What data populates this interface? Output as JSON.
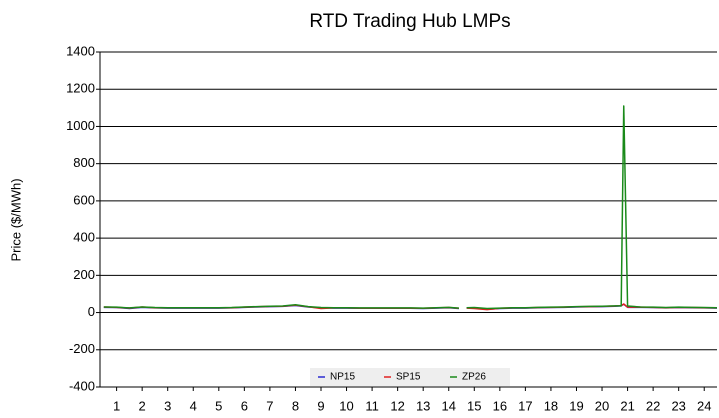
{
  "chart_data": {
    "type": "line",
    "title": "RTD Trading Hub LMPs",
    "y_label": "Price ($/MWh)",
    "x": [
      0.5,
      1,
      1.5,
      2,
      2.5,
      3,
      3.5,
      4,
      4.5,
      5,
      5.5,
      6,
      6.5,
      7,
      7.5,
      8,
      8.5,
      9,
      9.5,
      10,
      10.5,
      11,
      11.5,
      12,
      12.5,
      13,
      13.5,
      14,
      14.4,
      14.55,
      14.7,
      15,
      15.5,
      16,
      16.5,
      17,
      17.5,
      18,
      18.5,
      19,
      19.5,
      20,
      20.5,
      20.75,
      20.85,
      21,
      21.5,
      22,
      22.5,
      23,
      23.5,
      24,
      24.5
    ],
    "series": [
      {
        "name": "NP15",
        "color": "#2b2bd0",
        "values": [
          28,
          27,
          22,
          28,
          25,
          24,
          24,
          24,
          24,
          24,
          25,
          28,
          30,
          32,
          33,
          38,
          30,
          26,
          24,
          24,
          23,
          23,
          23,
          23,
          23,
          22,
          24,
          26,
          22,
          null,
          25,
          26,
          18,
          22,
          24,
          24,
          26,
          27,
          28,
          30,
          31,
          32,
          34,
          36,
          45,
          28,
          28,
          27,
          25,
          27,
          26,
          25,
          24
        ]
      },
      {
        "name": "SP15",
        "color": "#e02020",
        "values": [
          30,
          28,
          24,
          30,
          26,
          25,
          25,
          25,
          25,
          25,
          26,
          29,
          31,
          33,
          34,
          40,
          31,
          22,
          25,
          25,
          24,
          24,
          24,
          24,
          24,
          23,
          25,
          27,
          23,
          null,
          24,
          22,
          16,
          23,
          25,
          25,
          27,
          28,
          29,
          31,
          32,
          33,
          35,
          37,
          46,
          29,
          29,
          28,
          26,
          28,
          27,
          26,
          25
        ]
      },
      {
        "name": "ZP26",
        "color": "#1a8a1a",
        "values": [
          30,
          29,
          25,
          30,
          27,
          26,
          26,
          26,
          26,
          26,
          27,
          30,
          32,
          34,
          35,
          42,
          32,
          27,
          26,
          26,
          25,
          25,
          25,
          25,
          25,
          24,
          26,
          28,
          24,
          null,
          26,
          27,
          22,
          24,
          26,
          26,
          28,
          29,
          30,
          32,
          33,
          34,
          36,
          36,
          1110,
          35,
          30,
          29,
          27,
          29,
          28,
          27,
          26
        ]
      }
    ],
    "xlim": [
      0.35,
      24.5
    ],
    "xticks": [
      1,
      2,
      3,
      4,
      5,
      6,
      7,
      8,
      9,
      10,
      11,
      12,
      13,
      14,
      15,
      16,
      17,
      18,
      19,
      20,
      21,
      22,
      23,
      24
    ],
    "ylim": [
      -400,
      1400
    ],
    "yticks": [
      1400,
      1200,
      1000,
      800,
      600,
      400,
      200,
      0,
      -200,
      -400
    ],
    "grid": true,
    "legend_position": "bottom"
  }
}
